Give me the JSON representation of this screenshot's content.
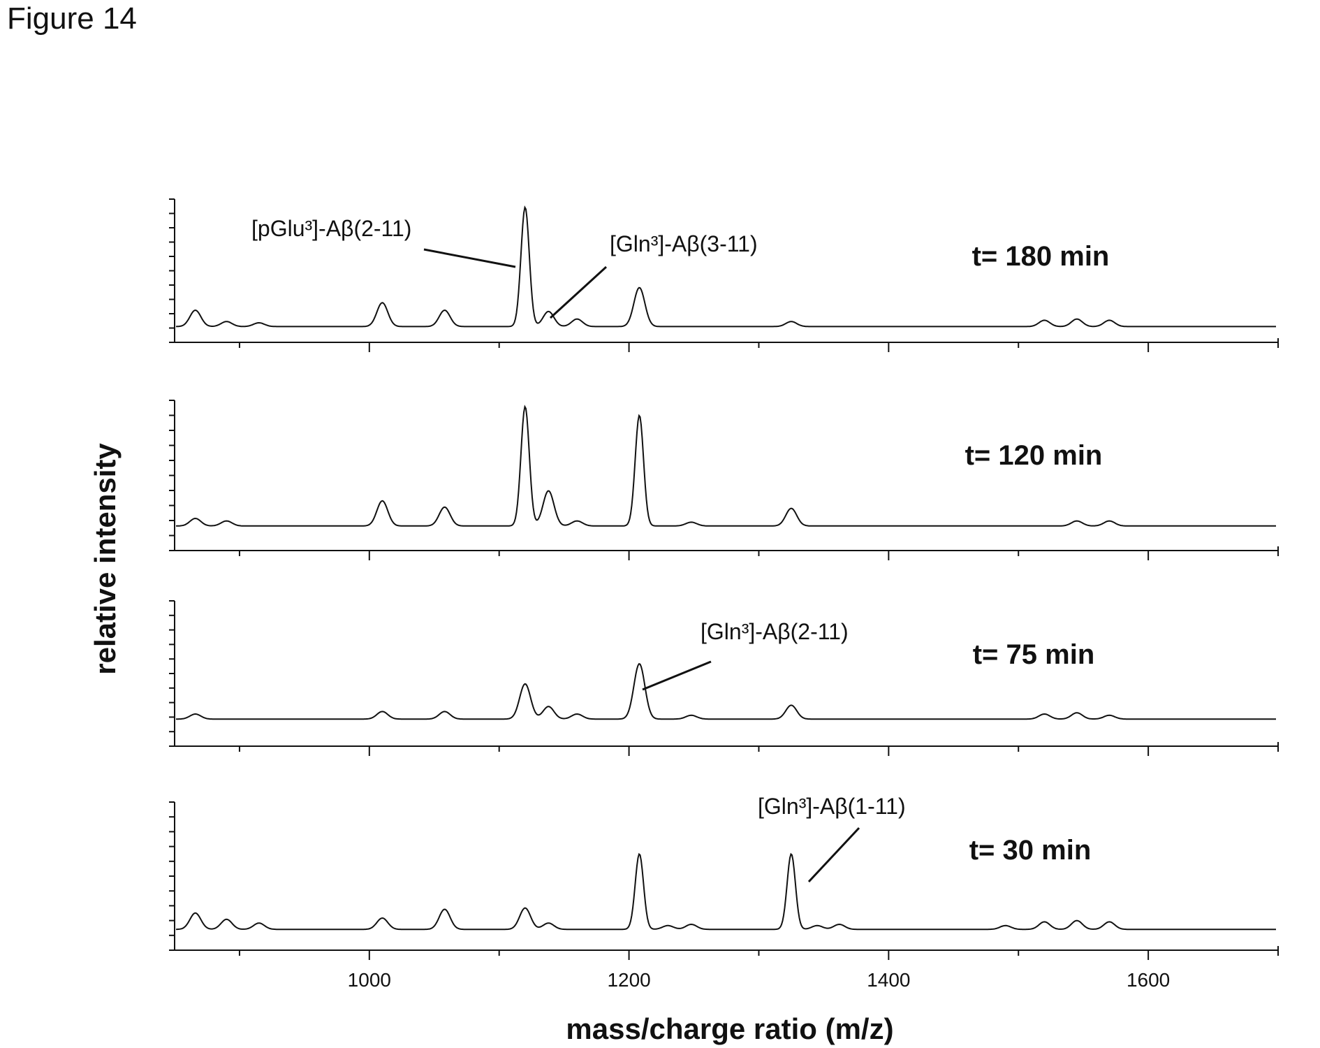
{
  "figure_title": "Figure 14",
  "colors": {
    "ink": "#111111",
    "background": "#ffffff"
  },
  "chart_data": {
    "type": "line",
    "xlabel": "mass/charge ratio (m/z)",
    "ylabel": "relative intensity",
    "xlim": [
      850,
      1700
    ],
    "ylim": [
      0,
      1
    ],
    "xticks": [
      1000,
      1200,
      1400,
      1600
    ],
    "grid": false,
    "panels": [
      {
        "label": "t= 180 min",
        "baseline": 0.07,
        "peaks": [
          {
            "x": 866,
            "y": 0.13
          },
          {
            "x": 890,
            "y": 0.04
          },
          {
            "x": 915,
            "y": 0.03
          },
          {
            "x": 1010,
            "y": 0.19
          },
          {
            "x": 1058,
            "y": 0.13
          },
          {
            "x": 1120,
            "y": 0.95
          },
          {
            "x": 1138,
            "y": 0.12
          },
          {
            "x": 1160,
            "y": 0.06
          },
          {
            "x": 1208,
            "y": 0.31
          },
          {
            "x": 1325,
            "y": 0.04
          },
          {
            "x": 1520,
            "y": 0.05
          },
          {
            "x": 1545,
            "y": 0.06
          },
          {
            "x": 1570,
            "y": 0.05
          }
        ],
        "annotations": [
          {
            "text": "[pGlu³]-Aβ(2-11)",
            "x": 1120
          },
          {
            "text": "[Gln³]-Aβ(3-11)",
            "x": 1138
          }
        ]
      },
      {
        "label": "t= 120 min",
        "baseline": 0.14,
        "peaks": [
          {
            "x": 866,
            "y": 0.06
          },
          {
            "x": 890,
            "y": 0.04
          },
          {
            "x": 1010,
            "y": 0.2
          },
          {
            "x": 1058,
            "y": 0.15
          },
          {
            "x": 1120,
            "y": 0.95
          },
          {
            "x": 1138,
            "y": 0.28
          },
          {
            "x": 1160,
            "y": 0.04
          },
          {
            "x": 1208,
            "y": 0.88
          },
          {
            "x": 1248,
            "y": 0.03
          },
          {
            "x": 1325,
            "y": 0.14
          },
          {
            "x": 1545,
            "y": 0.04
          },
          {
            "x": 1570,
            "y": 0.04
          }
        ],
        "annotations": []
      },
      {
        "label": "t= 75 min",
        "baseline": 0.16,
        "peaks": [
          {
            "x": 866,
            "y": 0.04
          },
          {
            "x": 1010,
            "y": 0.06
          },
          {
            "x": 1058,
            "y": 0.06
          },
          {
            "x": 1120,
            "y": 0.28
          },
          {
            "x": 1138,
            "y": 0.1
          },
          {
            "x": 1160,
            "y": 0.04
          },
          {
            "x": 1208,
            "y": 0.44
          },
          {
            "x": 1248,
            "y": 0.03
          },
          {
            "x": 1325,
            "y": 0.11
          },
          {
            "x": 1520,
            "y": 0.04
          },
          {
            "x": 1545,
            "y": 0.05
          },
          {
            "x": 1570,
            "y": 0.03
          }
        ],
        "annotations": [
          {
            "text": "[Gln³]-Aβ(2-11)",
            "x": 1208
          }
        ]
      },
      {
        "label": "t= 30 min",
        "baseline": 0.11,
        "peaks": [
          {
            "x": 866,
            "y": 0.13
          },
          {
            "x": 890,
            "y": 0.08
          },
          {
            "x": 915,
            "y": 0.05
          },
          {
            "x": 1010,
            "y": 0.09
          },
          {
            "x": 1058,
            "y": 0.16
          },
          {
            "x": 1120,
            "y": 0.17
          },
          {
            "x": 1138,
            "y": 0.05
          },
          {
            "x": 1208,
            "y": 0.6
          },
          {
            "x": 1230,
            "y": 0.03
          },
          {
            "x": 1248,
            "y": 0.04
          },
          {
            "x": 1325,
            "y": 0.6
          },
          {
            "x": 1345,
            "y": 0.03
          },
          {
            "x": 1362,
            "y": 0.04
          },
          {
            "x": 1490,
            "y": 0.03
          },
          {
            "x": 1520,
            "y": 0.06
          },
          {
            "x": 1545,
            "y": 0.07
          },
          {
            "x": 1570,
            "y": 0.06
          }
        ],
        "annotations": [
          {
            "text": "[Gln³]-Aβ(1-11)",
            "x": 1325
          }
        ]
      }
    ]
  }
}
